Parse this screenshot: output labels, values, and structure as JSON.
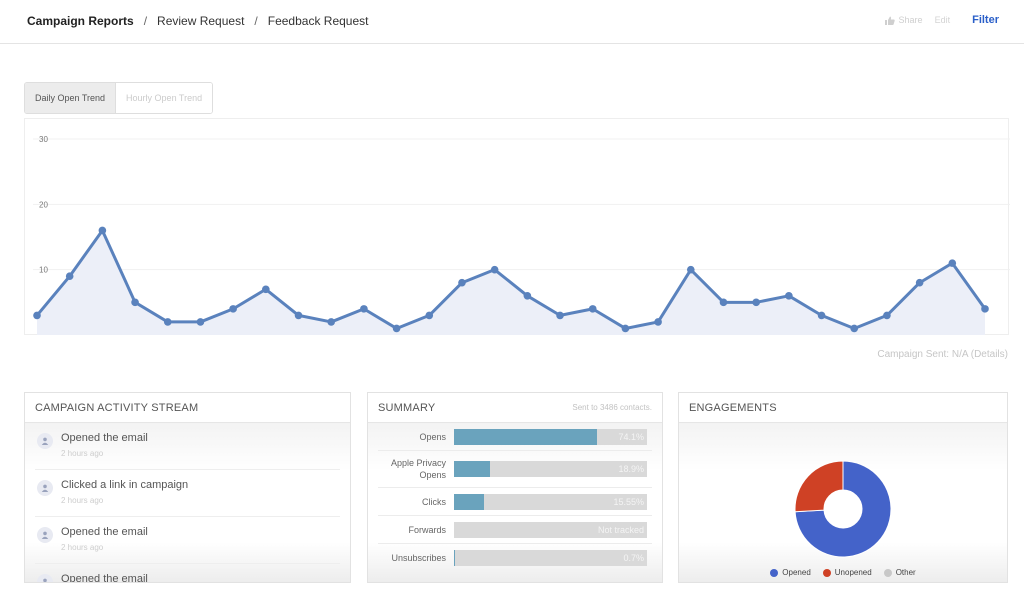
{
  "breadcrumbs": [
    "Campaign Reports",
    "Review Request",
    "Feedback Request"
  ],
  "breadcrumb_sep": "/",
  "actions": {
    "share": "Share",
    "edit": "Edit",
    "filter": "Filter"
  },
  "tabs": [
    {
      "label": "Daily Open Trend",
      "active": true
    },
    {
      "label": "Hourly Open Trend",
      "active": false
    }
  ],
  "campaign_sent": "Campaign Sent: N/A (Details)",
  "chart_data": {
    "type": "area",
    "title": "",
    "xlabel": "",
    "ylabel": "",
    "ylim": [
      0,
      30
    ],
    "yticks": [
      10,
      20,
      30
    ],
    "grid": true,
    "color": "#5a82bd",
    "fill": "#eceff8",
    "series": [
      {
        "values": [
          3,
          9,
          16,
          5,
          2,
          2,
          4,
          7,
          3,
          2,
          4,
          1,
          3,
          8,
          10,
          6,
          3,
          4,
          1,
          2,
          10,
          5,
          5,
          6,
          3,
          1,
          3,
          8,
          11,
          4
        ]
      }
    ]
  },
  "activity": {
    "title": "CAMPAIGN ACTIVITY STREAM",
    "items": [
      {
        "text": "Opened the email",
        "time": "2 hours ago"
      },
      {
        "text": "Clicked a link in campaign",
        "time": "2 hours ago"
      },
      {
        "text": "Opened the email",
        "time": "2 hours ago"
      },
      {
        "text": "Opened the email",
        "time": ""
      }
    ]
  },
  "summary": {
    "title": "SUMMARY",
    "subtitle": "Sent to 3486 contacts.",
    "rows": [
      {
        "label": "Opens",
        "value": "74.1%",
        "fraction": 0.741
      },
      {
        "label": "Apple Privacy Opens",
        "value": "18.9%",
        "fraction": 0.189
      },
      {
        "label": "Clicks",
        "value": "15.55%",
        "fraction": 0.1555
      },
      {
        "label": "Forwards",
        "value": "Not tracked",
        "fraction": 0
      },
      {
        "label": "Unsubscribes",
        "value": "0.7%",
        "fraction": 0.007
      }
    ]
  },
  "engagements": {
    "title": "ENGAGEMENTS",
    "slices": [
      {
        "label": "Opened",
        "value": 74.1,
        "color": "#4463c9"
      },
      {
        "label": "Unopened",
        "value": 25.9,
        "color": "#cf4125"
      },
      {
        "label": "Other",
        "value": 0,
        "color": "#c8c8c8"
      }
    ]
  }
}
